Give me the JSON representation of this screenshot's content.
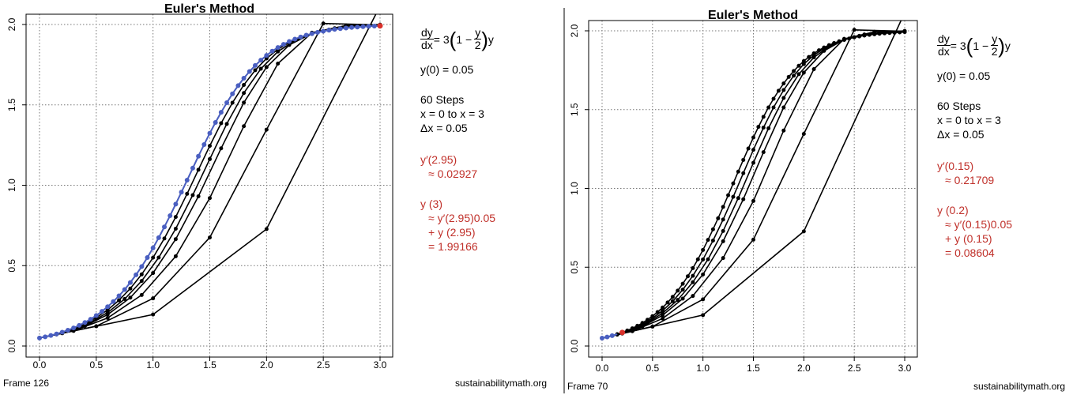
{
  "panels": [
    {
      "frame_label": "Frame 126",
      "watermark": "sustainabilitymath.org",
      "equation": {
        "lhs_num": "dy",
        "lhs_den": "dx",
        "eq": "= 3",
        "inner_one": "1 −",
        "frac_num": "y",
        "frac_den": "2",
        "tail": "y"
      },
      "initial": "y(0) = 0.05",
      "steps_heading": "60 Steps",
      "interval": "x = 0 to x = 3",
      "delta": "Δx = 0.05",
      "deriv_label": "y′(2.95)",
      "deriv_value": "≈  0.02927",
      "next_label": "y (3)",
      "next_line1": "≈ y′(2.95)0.05",
      "next_line2": "+ y (2.95)",
      "next_line3": "= 1.99166"
    },
    {
      "frame_label": "Frame 70",
      "watermark": "sustainabilitymath.org",
      "equation": {
        "lhs_num": "dy",
        "lhs_den": "dx",
        "eq": "= 3",
        "inner_one": "1 −",
        "frac_num": "y",
        "frac_den": "2",
        "tail": "y"
      },
      "initial": "y(0) = 0.05",
      "steps_heading": "60 Steps",
      "interval": "x = 0 to x = 3",
      "delta": "Δx = 0.05",
      "deriv_label": "y′(0.15)",
      "deriv_value": "≈  0.21709",
      "next_label": "y (0.2)",
      "next_line1": "≈ y′(0.15)0.05",
      "next_line2": "+ y (0.15)",
      "next_line3": "= 0.08604"
    }
  ],
  "chart_data": [
    {
      "type": "line",
      "title": "Euler's Method",
      "xlabel": "",
      "ylabel": "",
      "xlim": [
        0,
        3
      ],
      "ylim": [
        0,
        2
      ],
      "x_ticks": [
        "0.0",
        "0.5",
        "1.0",
        "1.5",
        "2.0",
        "2.5",
        "3.0"
      ],
      "y_ticks": [
        "0.0",
        "0.5",
        "1.0",
        "1.5",
        "2.0"
      ],
      "grid": true,
      "ode": {
        "r": 3,
        "K": 2,
        "y0": 0.05
      },
      "black_series_steps": [
        3,
        6,
        10,
        15,
        20,
        30,
        60
      ],
      "blue_series_steps": 60,
      "blue_points_shown": 60,
      "red_point": {
        "x": 3.0,
        "y": 1.99166
      },
      "colors": {
        "black": "#000000",
        "blue": "#4a5fc1",
        "red": "#d9302a"
      }
    },
    {
      "type": "line",
      "title": "Euler's Method",
      "xlabel": "",
      "ylabel": "",
      "xlim": [
        0,
        3
      ],
      "ylim": [
        0,
        2
      ],
      "x_ticks": [
        "0.0",
        "0.5",
        "1.0",
        "1.5",
        "2.0",
        "2.5",
        "3.0"
      ],
      "y_ticks": [
        "0.0",
        "0.5",
        "1.0",
        "1.5",
        "2.0"
      ],
      "grid": true,
      "ode": {
        "r": 3,
        "K": 2,
        "y0": 0.05
      },
      "black_series_steps": [
        3,
        6,
        10,
        15,
        20,
        30,
        60
      ],
      "blue_series_steps": 60,
      "blue_points_shown": 3,
      "red_point": {
        "x": 0.2,
        "y": 0.08604
      },
      "colors": {
        "black": "#000000",
        "blue": "#4a5fc1",
        "red": "#d9302a"
      }
    }
  ]
}
